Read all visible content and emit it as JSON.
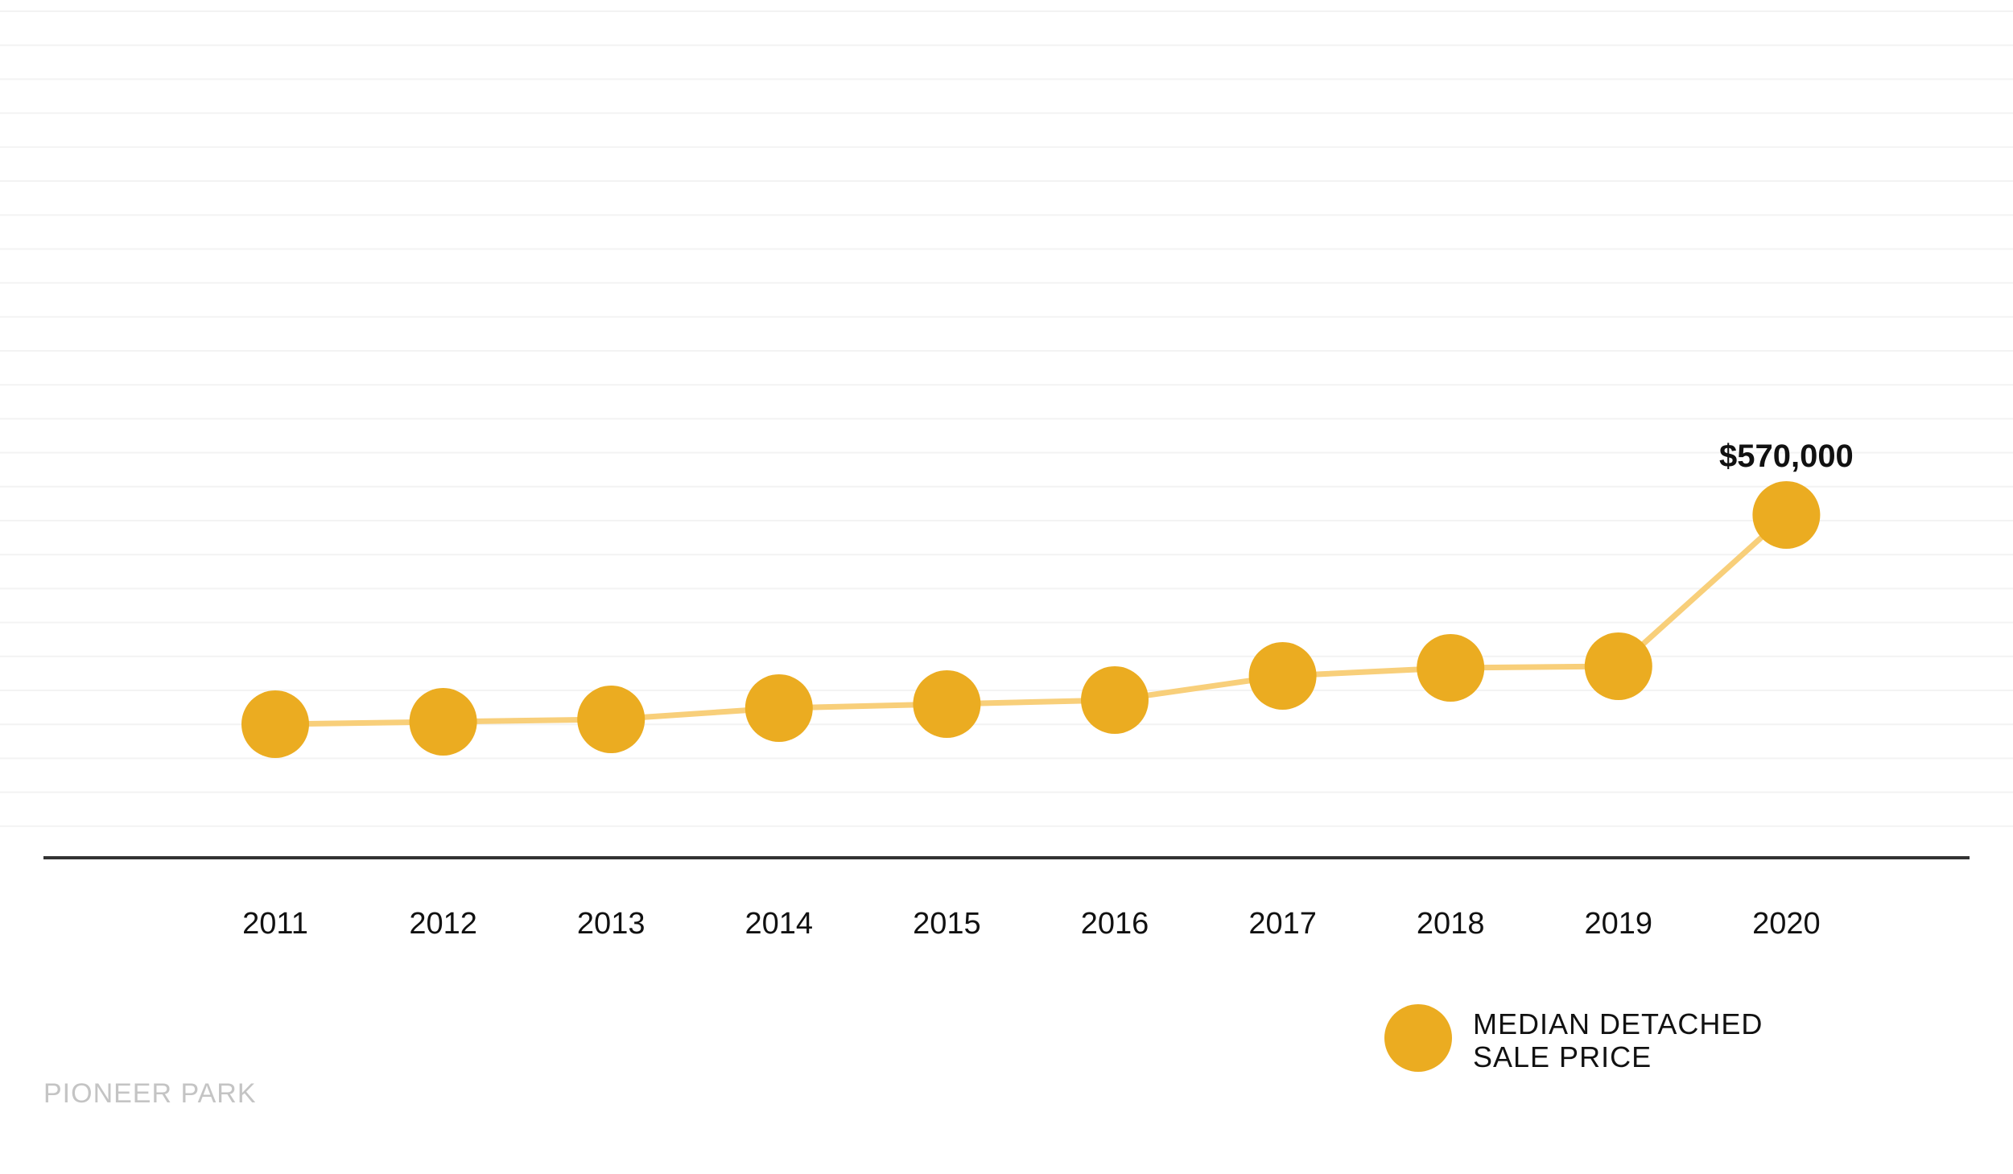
{
  "chart_data": {
    "type": "line",
    "categories": [
      "2011",
      "2012",
      "2013",
      "2014",
      "2015",
      "2016",
      "2017",
      "2018",
      "2019",
      "2020"
    ],
    "series": [
      {
        "name": "MEDIAN DETACHED SALE PRICE",
        "legend_lines": [
          "MEDIAN DETACHED",
          "SALE PRICE"
        ],
        "values": [
          310000,
          313000,
          316000,
          330000,
          335000,
          340000,
          370000,
          380000,
          382000,
          570000
        ],
        "marker_color": "#EBAC21",
        "line_color": "#F8CF7A"
      }
    ],
    "annotations": [
      {
        "category": "2020",
        "text": "$570,000"
      }
    ],
    "xlabel": "",
    "ylabel": "",
    "grid": true,
    "legend": "bottom-right"
  },
  "footer": {
    "label": "PIONEER PARK"
  },
  "colors": {
    "axis": "#333333",
    "grid": "#f3f3f3"
  }
}
